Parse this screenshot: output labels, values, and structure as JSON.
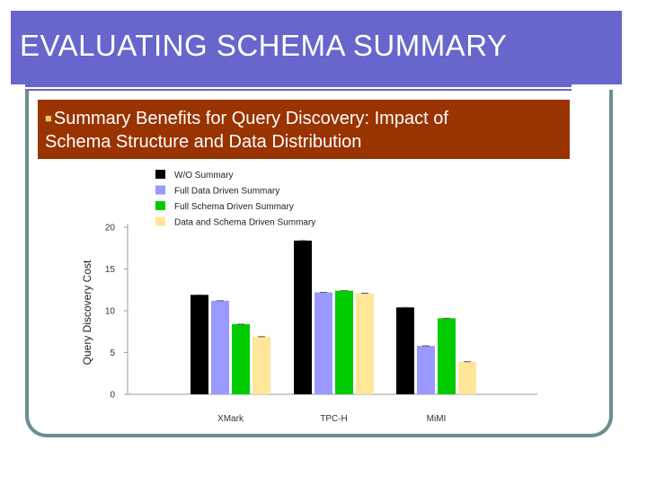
{
  "slide": {
    "title": "EVALUATING SCHEMA SUMMARY",
    "bullet_icon": "square-bullet-icon",
    "subtitle_line1": "Summary Benefits for Query Discovery: Impact of",
    "subtitle_line2": "Schema Structure and Data Distribution"
  },
  "colors": {
    "title_bg": "#6666cc",
    "subtitle_bg": "#993300",
    "frame": "#6b8e8e"
  },
  "chart_data": {
    "type": "bar",
    "title": "",
    "xlabel": "",
    "ylabel": "Query Discovery Cost",
    "ylim": [
      0,
      20
    ],
    "yticks": [
      0,
      5,
      10,
      15,
      20
    ],
    "categories": [
      "XMark",
      "TPC-H",
      "MiMI"
    ],
    "legend_position": "top",
    "grid": false,
    "series": [
      {
        "name": "W/O Summary",
        "color": "#000000",
        "values": [
          11.9,
          18.4,
          10.4
        ]
      },
      {
        "name": "Full Data Driven Summary",
        "color": "#9999ff",
        "values": [
          11.2,
          12.2,
          5.8
        ]
      },
      {
        "name": "Full Schema Driven Summary",
        "color": "#00cc00",
        "values": [
          8.4,
          12.4,
          9.1
        ]
      },
      {
        "name": "Data and Schema Driven Summary",
        "color": "#ffe699",
        "values": [
          6.9,
          12.1,
          3.9
        ]
      }
    ]
  }
}
